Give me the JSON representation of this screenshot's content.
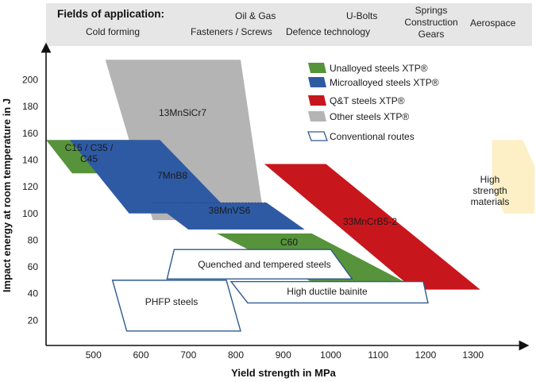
{
  "header": {
    "title": "Fields of application:",
    "items": [
      "Cold forming",
      "Oil & Gas",
      "Fasteners / Screws",
      "U-Bolts",
      "Defence technology",
      "Springs",
      "Construction",
      "Gears",
      "Aerospace"
    ]
  },
  "colors": {
    "unalloyed": "#56933b",
    "microalloyed": "#2e5aa4",
    "qt": "#c8161d",
    "other": "#b4b4b4",
    "conventional_stroke": "#2f5a8f",
    "high_strength_fill": "#fdefc6"
  },
  "chart_data": {
    "type": "area",
    "xlabel": "Yield strength in MPa",
    "ylabel": "Impact energy at room temperature in J",
    "xlim": [
      400,
      1350
    ],
    "ylim": [
      0,
      220
    ],
    "xticks": [
      500,
      600,
      700,
      800,
      900,
      1000,
      1100,
      1200,
      1300
    ],
    "yticks": [
      20,
      40,
      60,
      80,
      100,
      120,
      140,
      160,
      180,
      200
    ],
    "legend": {
      "position": "top-right",
      "entries": [
        {
          "label": "Unalloyed steels XTP®",
          "key": "unalloyed"
        },
        {
          "label": "Microalloyed steels XTP®",
          "key": "microalloyed"
        },
        {
          "label": "Q&T steels XTP®",
          "key": "qt"
        },
        {
          "label": "Other steels XTP®",
          "key": "other"
        },
        {
          "label": "Conventional routes",
          "key": "conventional"
        }
      ]
    },
    "regions": [
      {
        "name": "13MnSiCr7",
        "category": "other",
        "points": [
          [
            525,
            215
          ],
          [
            810,
            215
          ],
          [
            860,
            95
          ],
          [
            625,
            95
          ]
        ]
      },
      {
        "name": "C15 / C35 / C45",
        "category": "unalloyed",
        "points": [
          [
            400,
            155
          ],
          [
            590,
            155
          ],
          [
            645,
            130
          ],
          [
            455,
            130
          ]
        ]
      },
      {
        "name": "7MnB8",
        "category": "microalloyed",
        "points": [
          [
            450,
            155
          ],
          [
            640,
            155
          ],
          [
            790,
            100
          ],
          [
            575,
            100
          ]
        ]
      },
      {
        "name": "38MnVS6",
        "category": "microalloyed",
        "points": [
          [
            625,
            108
          ],
          [
            865,
            108
          ],
          [
            945,
            88
          ],
          [
            700,
            88
          ]
        ]
      },
      {
        "name": "C60",
        "category": "unalloyed",
        "points": [
          [
            760,
            85
          ],
          [
            960,
            85
          ],
          [
            1165,
            47
          ],
          [
            970,
            47
          ]
        ]
      },
      {
        "name": "33MnCrB5-2",
        "category": "qt",
        "points": [
          [
            860,
            137
          ],
          [
            990,
            137
          ],
          [
            1315,
            43
          ],
          [
            1175,
            43
          ]
        ]
      },
      {
        "name": "Quenched and tempered steels",
        "category": "conventional",
        "points": [
          [
            670,
            73
          ],
          [
            1000,
            73
          ],
          [
            1045,
            51
          ],
          [
            655,
            51
          ]
        ]
      },
      {
        "name": "High ductile bainite",
        "category": "conventional",
        "points": [
          [
            790,
            49
          ],
          [
            1195,
            49
          ],
          [
            1205,
            33
          ],
          [
            825,
            33
          ]
        ]
      },
      {
        "name": "PHFP steels",
        "category": "conventional",
        "points": [
          [
            540,
            50
          ],
          [
            780,
            50
          ],
          [
            810,
            12
          ],
          [
            570,
            12
          ]
        ]
      },
      {
        "name": "High strength materials",
        "category": "high_strength",
        "points": [
          [
            1340,
            155
          ],
          [
            1405,
            155
          ],
          [
            1430,
            135
          ],
          [
            1430,
            100
          ],
          [
            1365,
            100
          ],
          [
            1340,
            120
          ]
        ]
      }
    ]
  }
}
